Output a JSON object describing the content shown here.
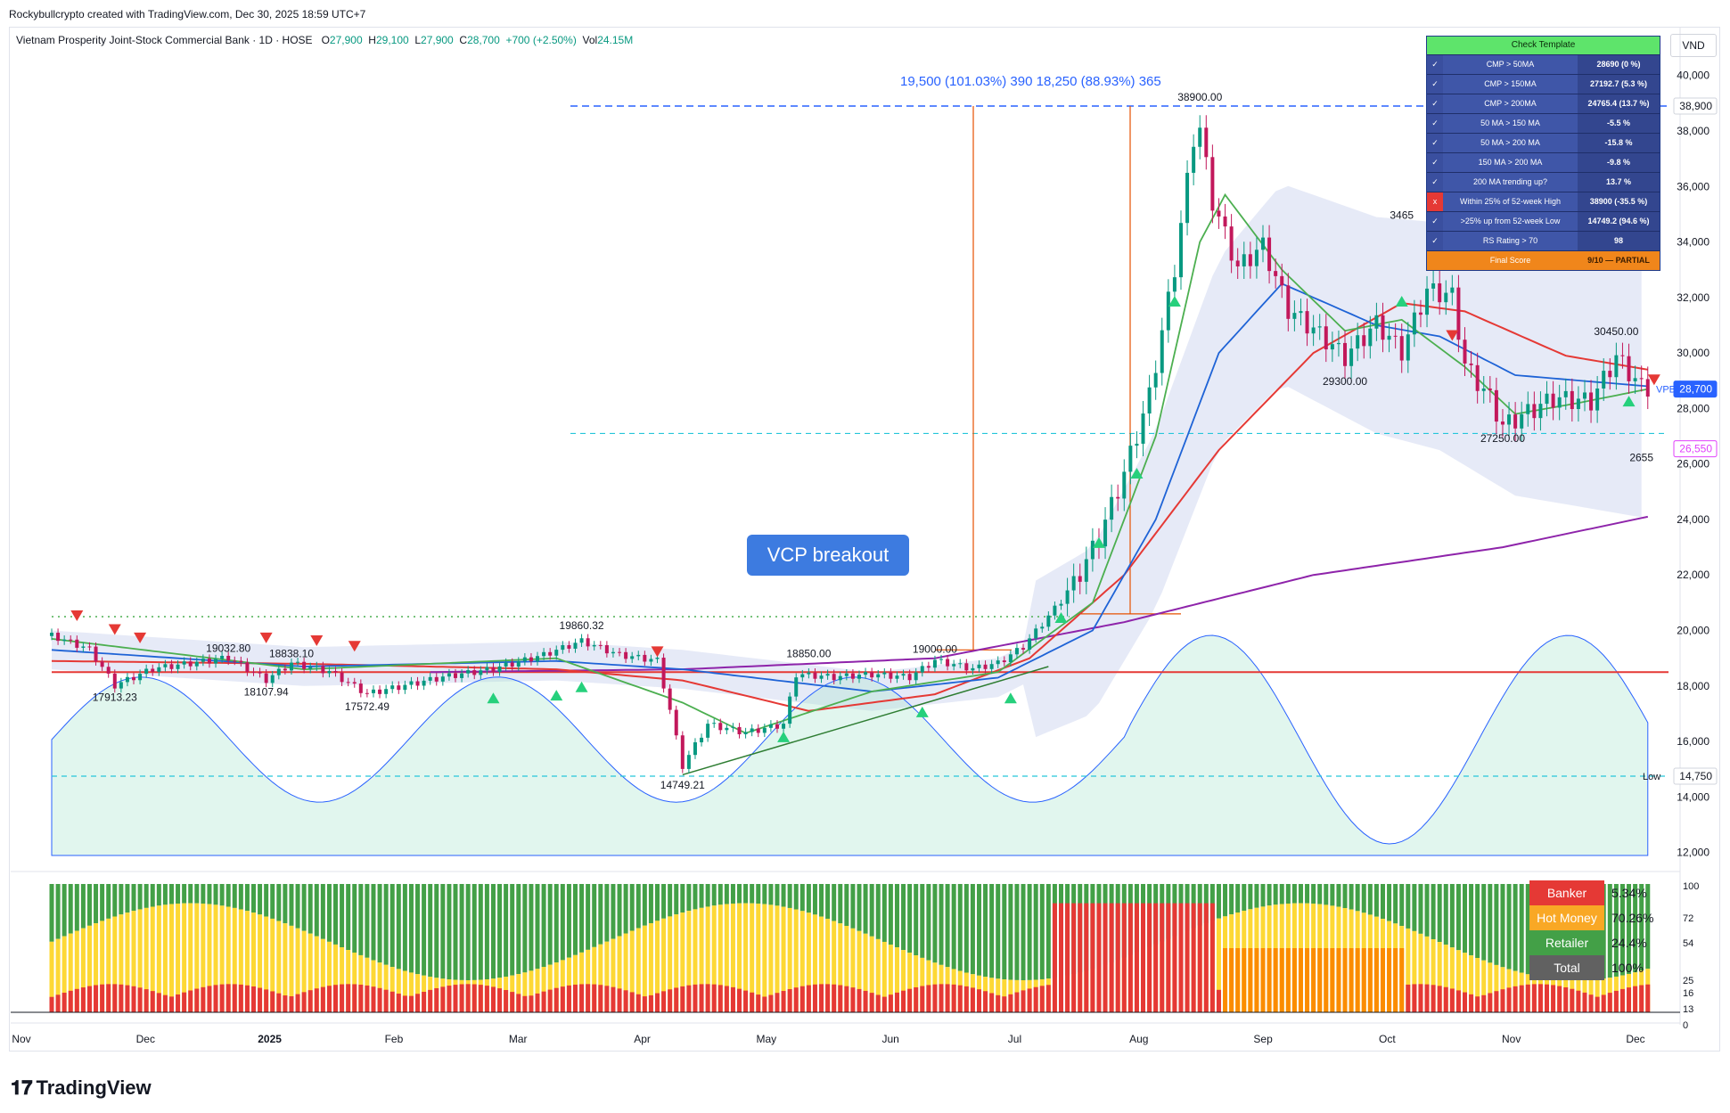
{
  "credit": "Rockybullcrypto created with TradingView.com, Dec 30, 2025 18:59 UTC+7",
  "header": {
    "symbol": "Vietnam Prosperity Joint-Stock Commercial Bank · 1D · HOSE",
    "o_label": "O",
    "o": "27,900",
    "h_label": "H",
    "h": "29,100",
    "l_label": "L",
    "l": "27,900",
    "c_label": "C",
    "c": "28,700",
    "chg": "+700 (+2.50%)",
    "vol_label": "Vol",
    "vol": "24.15M"
  },
  "currency": "VND",
  "brand": "TradingView",
  "colors": {
    "up": "#089981",
    "down": "#c2185b",
    "accent": "#2962ff",
    "ma50": "#4caf50",
    "ma150": "#1e63d6",
    "ma200": "#e53935",
    "ma_long": "#8e24aa"
  },
  "template": {
    "title": "Check Template",
    "rows": [
      {
        "check": "✓",
        "name": "CMP > 50MA",
        "value": "28690 (0 %)",
        "pass": true
      },
      {
        "check": "✓",
        "name": "CMP > 150MA",
        "value": "27192.7 (5.3 %)",
        "pass": true
      },
      {
        "check": "✓",
        "name": "CMP > 200MA",
        "value": "24765.4 (13.7 %)",
        "pass": true
      },
      {
        "check": "✓",
        "name": "50 MA > 150 MA",
        "value": "-5.5 %",
        "pass": true
      },
      {
        "check": "✓",
        "name": "50 MA > 200 MA",
        "value": "-15.8 %",
        "pass": true
      },
      {
        "check": "✓",
        "name": "150 MA > 200 MA",
        "value": "-9.8 %",
        "pass": true
      },
      {
        "check": "✓",
        "name": "200 MA trending up?",
        "value": "13.7 %",
        "pass": true
      },
      {
        "check": "x",
        "name": "Within 25% of 52-week High",
        "value": "38900 (-35.5 %)",
        "pass": false
      },
      {
        "check": "✓",
        "name": ">25% up from 52-week Low",
        "value": "14749.2 (94.6 %)",
        "pass": true
      },
      {
        "check": "✓",
        "name": "RS Rating > 70",
        "value": "98",
        "pass": true
      }
    ],
    "final_label": "Final Score",
    "final_value": "9/10 — PARTIAL"
  },
  "flow": [
    {
      "label": "Banker",
      "value": "5.34%",
      "color": "#e53935"
    },
    {
      "label": "Hot Money",
      "value": "70.26%",
      "color": "#f9a825"
    },
    {
      "label": "Retailer",
      "value": "24.4%",
      "color": "#43a047"
    },
    {
      "label": "Total",
      "value": "100%",
      "color": "#616161"
    }
  ],
  "flow_axis": [
    "100",
    "72",
    "54",
    "25",
    "16",
    "13",
    "0"
  ],
  "annotations": {
    "vcp": "VCP breakout",
    "measure": "19,500 (101.03%) 390   18,250 (88.93%) 365",
    "vpb_tag": "VPB"
  },
  "chart_data": {
    "type": "candlestick",
    "title": "Vietnam Prosperity Joint-Stock Commercial Bank · 1D · HOSE",
    "price_axis_ticks": [
      40000,
      38000,
      36000,
      34000,
      32000,
      30000,
      28000,
      26000,
      24000,
      22000,
      20000,
      18000,
      16000,
      14000,
      12000
    ],
    "price_axis_labels": [
      "40,000",
      "38,000",
      "36,000",
      "34,000",
      "32,000",
      "30,000",
      "28,000",
      "26,000",
      "24,000",
      "22,000",
      "20,000",
      "18,000",
      "16,000",
      "14,000",
      "12,000"
    ],
    "ylim": [
      11500,
      41000
    ],
    "months": [
      "Nov",
      "Dec",
      "2025",
      "Feb",
      "Mar",
      "Apr",
      "May",
      "Jun",
      "Jul",
      "Aug",
      "Sep",
      "Oct",
      "Nov",
      "Dec"
    ],
    "price_tags": [
      {
        "label": "38,900",
        "value": 38900
      },
      {
        "label": "28,700",
        "value": 28700
      },
      {
        "label": "26,550",
        "value": 26550
      },
      {
        "label": "14,750",
        "value": 14750
      }
    ],
    "low_label": "Low",
    "swing_labels": [
      {
        "text": "17913.23",
        "i": 10,
        "v": 17913,
        "pos": "below"
      },
      {
        "text": "19032.80",
        "i": 28,
        "v": 19033,
        "pos": "above"
      },
      {
        "text": "18107.94",
        "i": 34,
        "v": 18108,
        "pos": "below"
      },
      {
        "text": "18838.10",
        "i": 38,
        "v": 18838,
        "pos": "above"
      },
      {
        "text": "17572.49",
        "i": 50,
        "v": 17572,
        "pos": "below"
      },
      {
        "text": "19860.32",
        "i": 84,
        "v": 19860,
        "pos": "above"
      },
      {
        "text": "14749.21",
        "i": 100,
        "v": 14749,
        "pos": "below"
      },
      {
        "text": "18850.00",
        "i": 120,
        "v": 18850,
        "pos": "above"
      },
      {
        "text": "19000.00",
        "i": 140,
        "v": 19000,
        "pos": "above"
      },
      {
        "text": "38900.00",
        "i": 182,
        "v": 38900,
        "pos": "above"
      },
      {
        "text": "29300.00",
        "i": 205,
        "v": 29300,
        "pos": "below"
      },
      {
        "text": "3465",
        "i": 214,
        "v": 34650,
        "pos": "above"
      },
      {
        "text": "27250.00",
        "i": 230,
        "v": 27250,
        "pos": "below"
      },
      {
        "text": "30450.00",
        "i": 248,
        "v": 30450,
        "pos": "above"
      },
      {
        "text": "2655",
        "i": 252,
        "v": 26550,
        "pos": "below"
      }
    ],
    "close_keyframes": [
      [
        0,
        19800
      ],
      [
        6,
        19300
      ],
      [
        10,
        18000
      ],
      [
        16,
        18600
      ],
      [
        22,
        18800
      ],
      [
        28,
        19000
      ],
      [
        34,
        18200
      ],
      [
        38,
        18800
      ],
      [
        44,
        18500
      ],
      [
        50,
        17700
      ],
      [
        56,
        18000
      ],
      [
        62,
        18300
      ],
      [
        70,
        18600
      ],
      [
        78,
        19100
      ],
      [
        84,
        19600
      ],
      [
        90,
        19100
      ],
      [
        96,
        18900
      ],
      [
        98,
        17100
      ],
      [
        100,
        15100
      ],
      [
        104,
        16600
      ],
      [
        110,
        16300
      ],
      [
        116,
        16600
      ],
      [
        118,
        18400
      ],
      [
        124,
        18300
      ],
      [
        130,
        18400
      ],
      [
        136,
        18300
      ],
      [
        140,
        18900
      ],
      [
        146,
        18600
      ],
      [
        150,
        18800
      ],
      [
        154,
        19400
      ],
      [
        158,
        20500
      ],
      [
        162,
        21600
      ],
      [
        166,
        23300
      ],
      [
        170,
        25600
      ],
      [
        174,
        28400
      ],
      [
        178,
        33000
      ],
      [
        181,
        37700
      ],
      [
        182,
        38000
      ],
      [
        184,
        35400
      ],
      [
        188,
        33000
      ],
      [
        192,
        33800
      ],
      [
        196,
        31500
      ],
      [
        200,
        30800
      ],
      [
        205,
        29800
      ],
      [
        210,
        31000
      ],
      [
        214,
        30000
      ],
      [
        218,
        32200
      ],
      [
        222,
        32000
      ],
      [
        224,
        29500
      ],
      [
        228,
        28300
      ],
      [
        230,
        27300
      ],
      [
        234,
        27800
      ],
      [
        238,
        28300
      ],
      [
        244,
        28200
      ],
      [
        248,
        29800
      ],
      [
        252,
        28700
      ],
      [
        253,
        28700
      ]
    ],
    "ma50": [
      [
        0,
        19700
      ],
      [
        40,
        18600
      ],
      [
        80,
        19000
      ],
      [
        100,
        17400
      ],
      [
        110,
        16300
      ],
      [
        130,
        17800
      ],
      [
        150,
        18500
      ],
      [
        165,
        21000
      ],
      [
        175,
        27000
      ],
      [
        182,
        34000
      ],
      [
        186,
        35700
      ],
      [
        195,
        33000
      ],
      [
        205,
        30800
      ],
      [
        214,
        31200
      ],
      [
        224,
        29500
      ],
      [
        232,
        27800
      ],
      [
        242,
        28200
      ],
      [
        253,
        28700
      ]
    ],
    "ma150": [
      [
        0,
        19300
      ],
      [
        40,
        18700
      ],
      [
        80,
        18900
      ],
      [
        100,
        18600
      ],
      [
        130,
        17800
      ],
      [
        150,
        18300
      ],
      [
        165,
        20000
      ],
      [
        175,
        24000
      ],
      [
        185,
        30000
      ],
      [
        195,
        32500
      ],
      [
        210,
        31000
      ],
      [
        220,
        30600
      ],
      [
        232,
        29200
      ],
      [
        253,
        28800
      ]
    ],
    "ma200": [
      [
        0,
        18900
      ],
      [
        40,
        18800
      ],
      [
        80,
        18600
      ],
      [
        100,
        18200
      ],
      [
        120,
        17100
      ],
      [
        140,
        17700
      ],
      [
        155,
        19000
      ],
      [
        170,
        22000
      ],
      [
        185,
        26500
      ],
      [
        200,
        30000
      ],
      [
        214,
        31800
      ],
      [
        224,
        31500
      ],
      [
        240,
        29900
      ],
      [
        253,
        29400
      ]
    ],
    "ma_long": [
      [
        60,
        18500
      ],
      [
        100,
        18600
      ],
      [
        140,
        19000
      ],
      [
        170,
        20300
      ],
      [
        200,
        22000
      ],
      [
        230,
        23000
      ],
      [
        253,
        24100
      ]
    ],
    "signals_down": [
      {
        "i": 4,
        "v": 20500
      },
      {
        "i": 10,
        "v": 20000
      },
      {
        "i": 14,
        "v": 19700
      },
      {
        "i": 34,
        "v": 19700
      },
      {
        "i": 42,
        "v": 19600
      },
      {
        "i": 48,
        "v": 19400
      },
      {
        "i": 96,
        "v": 19200
      },
      {
        "i": 222,
        "v": 30600
      },
      {
        "i": 254,
        "v": 29000
      }
    ],
    "signals_up": [
      {
        "i": 70,
        "v": 17600
      },
      {
        "i": 80,
        "v": 17700
      },
      {
        "i": 84,
        "v": 18000
      },
      {
        "i": 116,
        "v": 16200
      },
      {
        "i": 138,
        "v": 17100
      },
      {
        "i": 152,
        "v": 17600
      },
      {
        "i": 160,
        "v": 20500
      },
      {
        "i": 166,
        "v": 23200
      },
      {
        "i": 172,
        "v": 25700
      },
      {
        "i": 178,
        "v": 31900
      },
      {
        "i": 214,
        "v": 31900
      },
      {
        "i": 250,
        "v": 28300
      }
    ],
    "flow_axis_ticks": [
      100,
      72,
      54,
      25,
      16,
      13,
      0
    ]
  }
}
